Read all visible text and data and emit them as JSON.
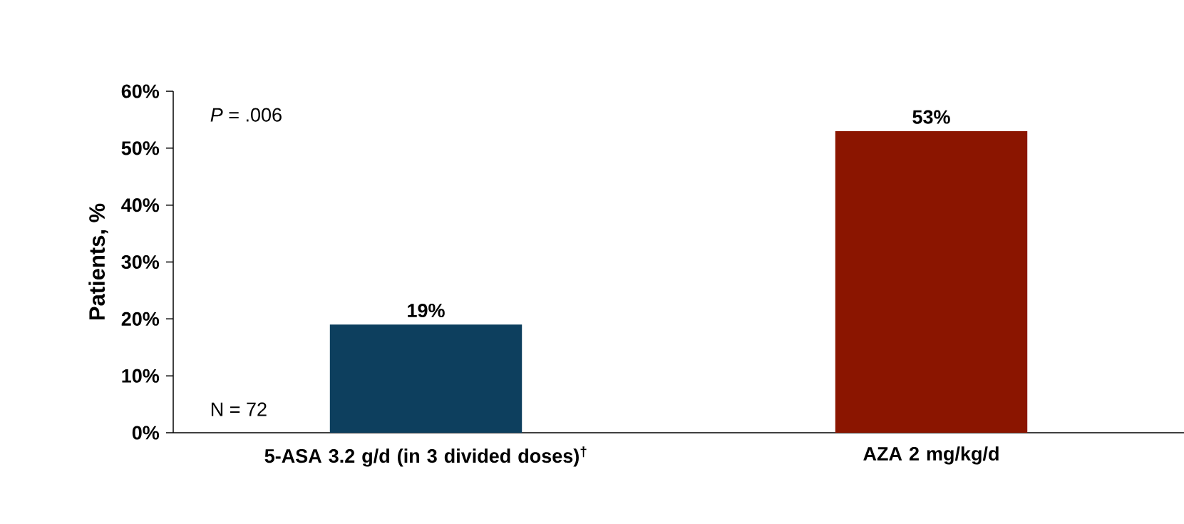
{
  "chart_data": {
    "type": "bar",
    "ylabel": "Patients, %",
    "categories": [
      "5-ASA 3.2 g/d (in 3 divided doses)$^{†}$",
      "AZA  2 mg/kg/d"
    ],
    "values": [
      19,
      53
    ],
    "value_labels": [
      "19%",
      "53%"
    ],
    "colors": [
      "#0d3f5e",
      "#8b1500"
    ],
    "ylim": [
      0,
      60
    ],
    "yticks": [
      {
        "value": 0,
        "label": "0%"
      },
      {
        "value": 10,
        "label": "10%"
      },
      {
        "value": 20,
        "label": "20%"
      },
      {
        "value": 30,
        "label": "30%"
      },
      {
        "value": 40,
        "label": "40%"
      },
      {
        "value": 50,
        "label": "50%"
      },
      {
        "value": 60,
        "label": "60%"
      }
    ],
    "annotations": [
      "*P* = .006",
      "N = 72"
    ],
    "grid": false
  }
}
